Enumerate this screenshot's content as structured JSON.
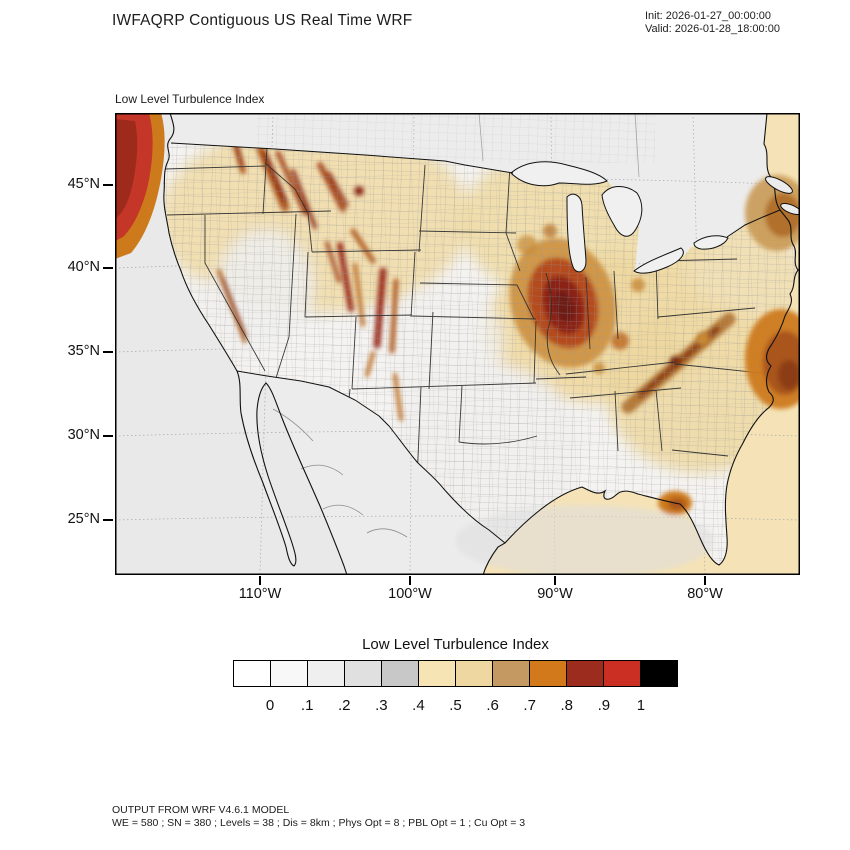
{
  "header": {
    "title": "IWFAQRP Contiguous US Real Time WRF",
    "init": "Init: 2026-01-27_00:00:00",
    "valid": "Valid: 2026-01-28_18:00:00"
  },
  "map": {
    "subtitle": "Low Level Turbulence Index",
    "lat_ticks": [
      "45°N",
      "40°N",
      "35°N",
      "30°N",
      "25°N"
    ],
    "lon_ticks": [
      "110°W",
      "100°W",
      "90°W",
      "80°W"
    ]
  },
  "colorbar": {
    "title": "Low Level Turbulence Index",
    "ticks": [
      "0",
      ".1",
      ".2",
      ".3",
      ".4",
      ".5",
      ".6",
      ".7",
      ".8",
      ".9",
      "1"
    ],
    "colors": [
      "#ffffff",
      "#f8f8f8",
      "#efefef",
      "#e0e0e0",
      "#c8c8c8",
      "#f7e4b5",
      "#eed7a0",
      "#c59a62",
      "#d2791b",
      "#9c2d1e",
      "#cb2f23",
      "#000000"
    ]
  },
  "footer": {
    "line1": "OUTPUT FROM WRF V4.6.1 MODEL",
    "line2": "WE = 580 ; SN = 380 ; Levels = 38 ; Dis = 8km ; Phys Opt = 8 ; PBL Opt = 1 ; Cu Opt = 3"
  }
}
